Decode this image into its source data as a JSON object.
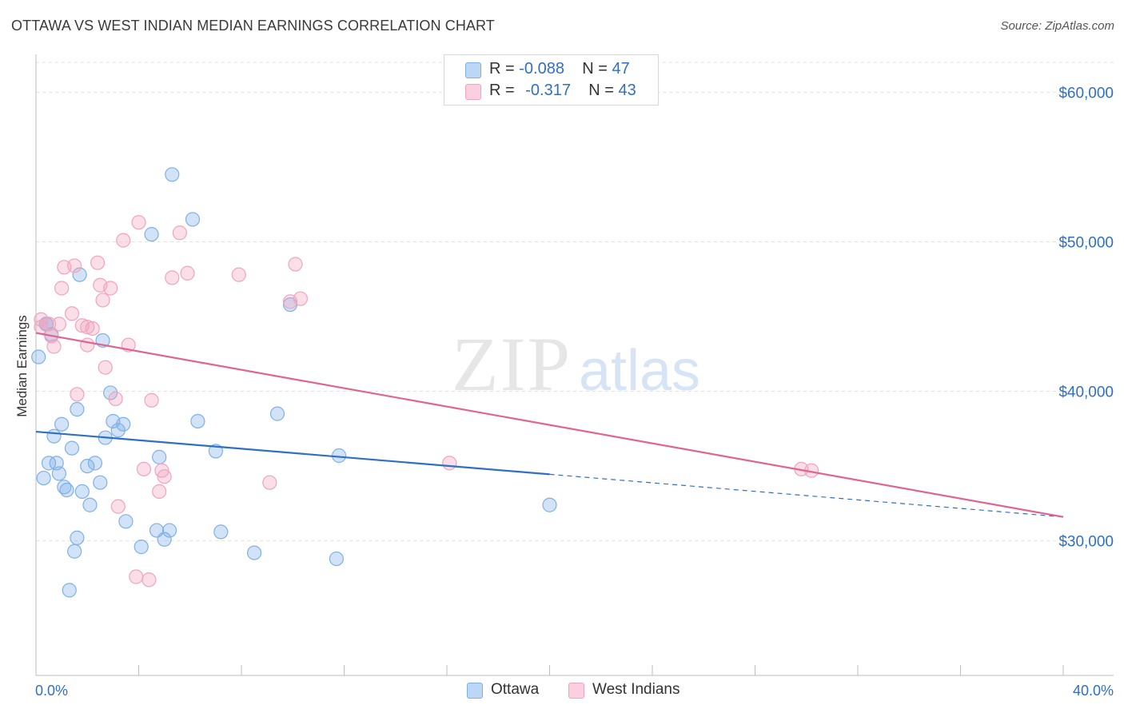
{
  "title": "OTTAWA VS WEST INDIAN MEDIAN EARNINGS CORRELATION CHART",
  "source": "Source: ZipAtlas.com",
  "legend": [
    {
      "r_label": "R =",
      "r_value": "-0.088",
      "n_label": "N =",
      "n_value": "47",
      "color": "#7fb0e8"
    },
    {
      "r_label": "R =",
      "r_value": "-0.317",
      "n_label": "N =",
      "n_value": "43",
      "color": "#f2a3bd"
    }
  ],
  "bottom_legend": [
    {
      "label": "Ottawa",
      "color": "#7fb0e8"
    },
    {
      "label": "West Indians",
      "color": "#f2a3bd"
    }
  ],
  "watermark": {
    "zip": "ZIP",
    "atlas": "atlas"
  },
  "chart_data": {
    "type": "scatter",
    "title": "OTTAWA VS WEST INDIAN MEDIAN EARNINGS CORRELATION CHART",
    "ylabel": "Median Earnings",
    "xlabel": "",
    "xlim": [
      0,
      40
    ],
    "ylim": [
      21000,
      62000
    ],
    "x_tick_labels": {
      "left": "0.0%",
      "right": "40.0%"
    },
    "y_ticks": [
      {
        "value": 30000,
        "label": "$30,000"
      },
      {
        "value": 40000,
        "label": "$40,000"
      },
      {
        "value": 50000,
        "label": "$50,000"
      },
      {
        "value": 60000,
        "label": "$60,000"
      }
    ],
    "series": [
      {
        "name": "Ottawa",
        "color": "#7fb0e8",
        "line_color": "#2f6fc5",
        "trend": {
          "x0": 0,
          "y0": 37300,
          "x1": 40,
          "y1": 31600,
          "solid_until": 20
        },
        "points": [
          [
            0.1,
            42300
          ],
          [
            0.3,
            34200
          ],
          [
            0.4,
            44500
          ],
          [
            0.4,
            44500
          ],
          [
            0.5,
            35200
          ],
          [
            0.6,
            43800
          ],
          [
            0.7,
            37000
          ],
          [
            0.8,
            35200
          ],
          [
            0.9,
            34500
          ],
          [
            1.0,
            37800
          ],
          [
            1.1,
            33600
          ],
          [
            1.2,
            33400
          ],
          [
            1.3,
            26700
          ],
          [
            1.4,
            36200
          ],
          [
            1.5,
            29300
          ],
          [
            1.6,
            30200
          ],
          [
            1.6,
            38800
          ],
          [
            1.7,
            47800
          ],
          [
            1.8,
            33300
          ],
          [
            2.0,
            35000
          ],
          [
            2.1,
            32400
          ],
          [
            2.3,
            35200
          ],
          [
            2.5,
            33900
          ],
          [
            2.6,
            43400
          ],
          [
            2.7,
            36900
          ],
          [
            2.9,
            39900
          ],
          [
            3.0,
            38000
          ],
          [
            3.2,
            37400
          ],
          [
            3.4,
            37800
          ],
          [
            3.5,
            31300
          ],
          [
            4.1,
            29600
          ],
          [
            4.5,
            50500
          ],
          [
            4.7,
            30700
          ],
          [
            4.8,
            35600
          ],
          [
            5.0,
            30100
          ],
          [
            5.2,
            30700
          ],
          [
            5.3,
            54500
          ],
          [
            6.1,
            51500
          ],
          [
            6.3,
            38000
          ],
          [
            7.0,
            36000
          ],
          [
            7.2,
            30600
          ],
          [
            8.5,
            29200
          ],
          [
            9.4,
            38500
          ],
          [
            9.9,
            45800
          ],
          [
            11.8,
            35700
          ],
          [
            11.7,
            28800
          ],
          [
            20.0,
            32400
          ]
        ]
      },
      {
        "name": "West Indians",
        "color": "#f2a3bd",
        "line_color": "#e0658e",
        "trend": {
          "x0": 0,
          "y0": 43900,
          "x1": 40,
          "y1": 31600,
          "solid_until": 40
        },
        "points": [
          [
            0.2,
            44800
          ],
          [
            0.2,
            44300
          ],
          [
            0.5,
            44500
          ],
          [
            0.6,
            43700
          ],
          [
            0.7,
            43000
          ],
          [
            0.9,
            44500
          ],
          [
            1.0,
            46900
          ],
          [
            1.1,
            48300
          ],
          [
            1.4,
            45200
          ],
          [
            1.5,
            48400
          ],
          [
            1.6,
            39800
          ],
          [
            1.8,
            44400
          ],
          [
            2.0,
            44300
          ],
          [
            2.0,
            43100
          ],
          [
            2.2,
            44200
          ],
          [
            2.4,
            48600
          ],
          [
            2.5,
            47100
          ],
          [
            2.6,
            46100
          ],
          [
            2.7,
            41600
          ],
          [
            2.9,
            46900
          ],
          [
            3.1,
            39500
          ],
          [
            3.2,
            32300
          ],
          [
            3.4,
            50100
          ],
          [
            3.6,
            43100
          ],
          [
            3.9,
            27600
          ],
          [
            4.0,
            51300
          ],
          [
            4.2,
            34800
          ],
          [
            4.4,
            27400
          ],
          [
            4.5,
            39400
          ],
          [
            4.8,
            33300
          ],
          [
            4.9,
            34700
          ],
          [
            5.0,
            34300
          ],
          [
            5.3,
            47600
          ],
          [
            5.6,
            50600
          ],
          [
            5.9,
            47900
          ],
          [
            7.9,
            47800
          ],
          [
            9.1,
            33900
          ],
          [
            9.9,
            46000
          ],
          [
            10.1,
            48500
          ],
          [
            10.3,
            46200
          ],
          [
            16.1,
            35200
          ],
          [
            29.8,
            34800
          ],
          [
            30.2,
            34700
          ]
        ]
      }
    ]
  }
}
